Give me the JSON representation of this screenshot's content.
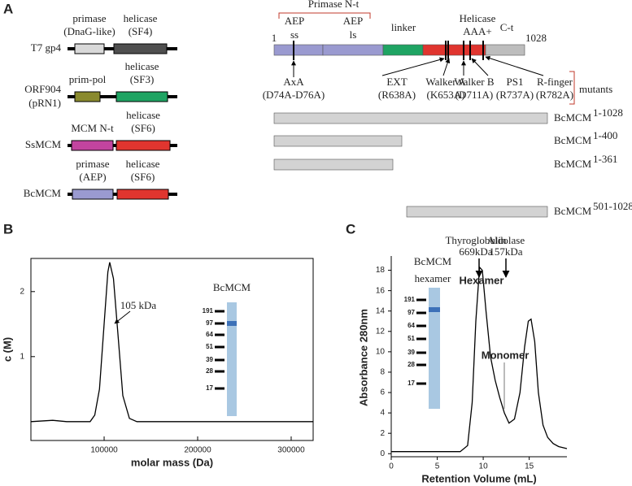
{
  "panel_a": {
    "label": "A",
    "constructs": [
      {
        "name": [
          "T7 gp4"
        ],
        "domains": [
          {
            "text": [
              "primase",
              "(DnaG-like)"
            ],
            "color": "#d9d9d9"
          },
          {
            "text": [
              "helicase",
              "(SF4)"
            ],
            "color": "#4f4f4f"
          }
        ]
      },
      {
        "name": [
          "ORF904",
          "(pRN1)"
        ],
        "domains": [
          {
            "text": [
              "prim-pol"
            ],
            "color": "#8a8a2e"
          },
          {
            "text": [
              "helicase",
              "(SF3)"
            ],
            "color": "#1fa463"
          }
        ]
      },
      {
        "name": [
          "SsMCM"
        ],
        "domains": [
          {
            "text": [
              "MCM N-t"
            ],
            "color": "#c2449f"
          },
          {
            "text": [
              "helicase",
              "(SF6)"
            ],
            "color": "#e0352f"
          }
        ]
      },
      {
        "name": [
          "BcMCM"
        ],
        "domains": [
          {
            "text": [
              "primase",
              "(AEP)"
            ],
            "color": "#9a9ad0"
          },
          {
            "text": [
              "helicase",
              "(SF6)"
            ],
            "color": "#e0352f"
          }
        ]
      }
    ],
    "map": {
      "group": "Primase N-t",
      "start": "1",
      "end": "1028",
      "regions": [
        {
          "text": [
            "AEP",
            "ss"
          ],
          "color": "#9a9ad0"
        },
        {
          "text": [
            "AEP",
            "ls"
          ],
          "color": "#9a9ad0"
        },
        {
          "text": [
            "linker"
          ],
          "color": "#1fa463"
        },
        {
          "text": [
            "Helicase",
            "AAA+"
          ],
          "color": "#e0352f"
        },
        {
          "text": [
            "C-t"
          ],
          "color": "#bdbdbd"
        }
      ],
      "mutants": [
        {
          "name": "AxA",
          "site": "(D74A-D76A)"
        },
        {
          "name": "EXT",
          "site": "(R638A)"
        },
        {
          "name": "Walker A",
          "site": "(K653A)"
        },
        {
          "name": "Walker B",
          "site": "(D711A)"
        },
        {
          "name": "PS1",
          "site": "(R737A)"
        },
        {
          "name": "R-finger",
          "site": "(R782A)"
        }
      ],
      "mutants_label": "mutants"
    },
    "truncations": [
      {
        "name": "BcMCM",
        "range": "1-1028"
      },
      {
        "name": "BcMCM",
        "range": "1-400"
      },
      {
        "name": "BcMCM",
        "range": "1-361"
      },
      {
        "name": "BcMCM",
        "range": "501-1028"
      }
    ]
  },
  "chart_data": [
    {
      "type": "line",
      "panel": "B",
      "x_label": "molar mass (Da)",
      "y_label": "c (M)",
      "x": [
        21700,
        45000,
        60000,
        85000,
        90000,
        95000,
        100000,
        104000,
        106000,
        110000,
        115000,
        120000,
        127000,
        135000,
        323500
      ],
      "series": [
        {
          "name": "BcMCM",
          "color": "#000000",
          "values": [
            0,
            0.02,
            0,
            0,
            0.1,
            0.5,
            1.5,
            2.3,
            2.45,
            2.2,
            1.3,
            0.4,
            0.05,
            0,
            0
          ]
        }
      ],
      "xlim": [
        21700,
        323500
      ],
      "xticks": [
        100000,
        200000,
        300000
      ],
      "ylim": [
        -0.29,
        2.51
      ],
      "yticks": [
        1,
        2
      ],
      "annotation": "105 kDa",
      "gel": {
        "title": [
          "BcMCM"
        ],
        "ladder": [
          "191",
          "97",
          "64",
          "51",
          "39",
          "28",
          "17"
        ]
      }
    },
    {
      "type": "line",
      "panel": "C",
      "x_label": "Retention Volume (mL)",
      "y_label": "Absorbance 280nm",
      "x": [
        0,
        7.5,
        8.3,
        8.8,
        9.2,
        9.6,
        9.9,
        10.3,
        10.8,
        11.3,
        11.8,
        12.3,
        12.8,
        13.4,
        14.0,
        14.5,
        14.9,
        15.2,
        15.6,
        16.0,
        16.5,
        17.0,
        17.6,
        18.2,
        19.1
      ],
      "series": [
        {
          "name": "BcMCM",
          "color": "#000000",
          "values": [
            0.2,
            0.2,
            0.8,
            5,
            13,
            18.3,
            18,
            14,
            9.5,
            7.2,
            5.5,
            4,
            3,
            3.4,
            6,
            10.5,
            13,
            13.2,
            11,
            6,
            2.8,
            1.6,
            1,
            0.7,
            0.5
          ]
        }
      ],
      "xlim": [
        0,
        19.1
      ],
      "xticks": [
        0,
        5,
        10,
        15
      ],
      "ylim": [
        -0.3,
        19.4
      ],
      "yticks": [
        0,
        2,
        4,
        6,
        8,
        10,
        12,
        14,
        16,
        18
      ],
      "markers": [
        [
          "Thyroglobulin",
          "669kDa"
        ],
        [
          "Aldolase",
          "157kDa"
        ]
      ],
      "peaks": [
        "Hexamer",
        "Monomer"
      ],
      "gel": {
        "title": [
          "BcMCM",
          "hexamer"
        ],
        "ladder": [
          "191",
          "97",
          "64",
          "51",
          "39",
          "28",
          "17"
        ]
      }
    }
  ]
}
